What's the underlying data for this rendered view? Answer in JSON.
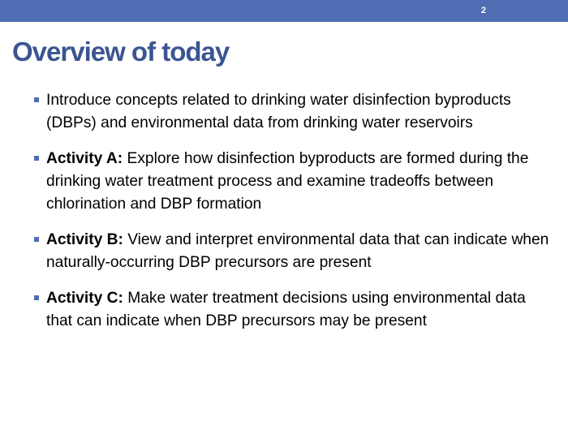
{
  "slide": {
    "number": "2",
    "title": "Overview of today",
    "accent_color": "#4f6db3",
    "title_color": "#3a5591"
  },
  "bullets": [
    {
      "label": "",
      "text": "Introduce concepts related to drinking water disinfection byproducts (DBPs) and environmental data from drinking water reservoirs"
    },
    {
      "label": "Activity A:",
      "text": " Explore how disinfection byproducts are formed during the drinking water treatment process and examine tradeoffs between chlorination and DBP formation"
    },
    {
      "label": "Activity B:",
      "text": " View and interpret environmental data that can indicate when naturally-occurring DBP precursors are present"
    },
    {
      "label": "Activity C:",
      "text": " Make water treatment decisions using environmental data that can indicate when DBP precursors may be present"
    }
  ]
}
